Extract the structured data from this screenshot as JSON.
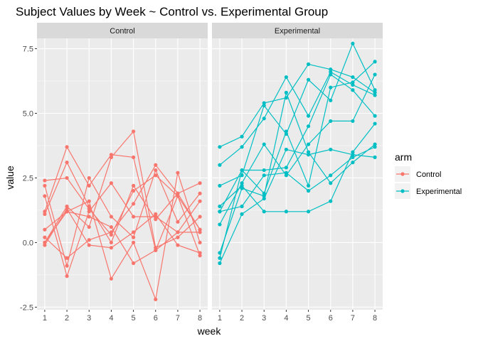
{
  "chart_data": {
    "type": "line",
    "title": "Subject Values by Week ~ Control vs. Experimental Group",
    "xlabel": "week",
    "ylabel": "value",
    "x": [
      1,
      2,
      3,
      4,
      5,
      6,
      7,
      8
    ],
    "xlim": [
      0.65,
      8.35
    ],
    "ylim": [
      -2.6,
      7.9
    ],
    "xticks": [
      "1",
      "2",
      "3",
      "4",
      "5",
      "6",
      "7",
      "8"
    ],
    "yticks": [
      {
        "value": -2.5,
        "label": "-2.5"
      },
      {
        "value": 0,
        "label": "0.0"
      },
      {
        "value": 2.5,
        "label": "2.5"
      },
      {
        "value": 5,
        "label": "5.0"
      },
      {
        "value": 7.5,
        "label": "7.5"
      }
    ],
    "grid": true,
    "legend": {
      "title": "arm",
      "placement": "right",
      "entries": [
        {
          "label": "Control",
          "color": "#F8766D"
        },
        {
          "label": "Experimental",
          "color": "#00BFC4"
        }
      ]
    },
    "facets": [
      {
        "label": "Control",
        "color": "#F8766D",
        "subjects": [
          [
            0.2,
            -0.6,
            0.1,
            0.4,
            1.5,
            3.0,
            1.9,
            2.3
          ],
          [
            1.2,
            3.7,
            2.2,
            3.4,
            3.3,
            -0.3,
            1.8,
            0.5
          ],
          [
            0.0,
            1.2,
            1.6,
            -1.4,
            0.0,
            -2.2,
            2.7,
            0.0
          ],
          [
            2.4,
            2.5,
            1.3,
            0.3,
            2.0,
            2.6,
            1.8,
            -0.5
          ],
          [
            0.0,
            1.4,
            0.6,
            3.3,
            4.3,
            -0.2,
            0.2,
            1.0
          ],
          [
            2.2,
            -0.9,
            2.5,
            1.0,
            0.2,
            2.8,
            0.8,
            1.9
          ],
          [
            0.5,
            1.2,
            1.0,
            0.6,
            -0.8,
            -0.3,
            0.4,
            1.6
          ],
          [
            1.1,
            3.1,
            1.4,
            0.0,
            2.2,
            0.9,
            1.9,
            0.5
          ],
          [
            1.8,
            -1.3,
            1.2,
            2.3,
            1.0,
            1.0,
            0.4,
            0.4
          ],
          [
            -0.1,
            1.3,
            -0.1,
            -0.2,
            0.4,
            1.1,
            -0.1,
            -0.4
          ]
        ]
      },
      {
        "label": "Experimental",
        "color": "#00BFC4",
        "subjects": [
          [
            3.7,
            4.1,
            5.4,
            5.6,
            6.9,
            6.7,
            6.4,
            5.8
          ],
          [
            3.0,
            3.7,
            4.8,
            6.4,
            4.9,
            6.6,
            6.1,
            5.7
          ],
          [
            2.2,
            2.6,
            5.3,
            4.2,
            6.3,
            5.5,
            7.7,
            5.9
          ],
          [
            1.2,
            2.8,
            1.9,
            4.3,
            2.2,
            6.0,
            6.2,
            7.0
          ],
          [
            0.7,
            2.3,
            3.8,
            2.6,
            3.8,
            4.7,
            4.7,
            6.5
          ],
          [
            -0.4,
            2.1,
            1.8,
            5.8,
            3.5,
            2.3,
            3.1,
            3.8
          ],
          [
            -0.6,
            2.8,
            2.8,
            2.9,
            4.5,
            6.5,
            5.9,
            4.9
          ],
          [
            -0.8,
            1.1,
            1.7,
            3.6,
            3.4,
            3.6,
            3.4,
            3.3
          ],
          [
            1.4,
            2.2,
            1.2,
            1.2,
            1.2,
            1.6,
            3.5,
            4.6
          ],
          [
            1.2,
            1.4,
            2.6,
            2.7,
            2.0,
            2.6,
            3.3,
            3.7
          ]
        ]
      }
    ]
  }
}
